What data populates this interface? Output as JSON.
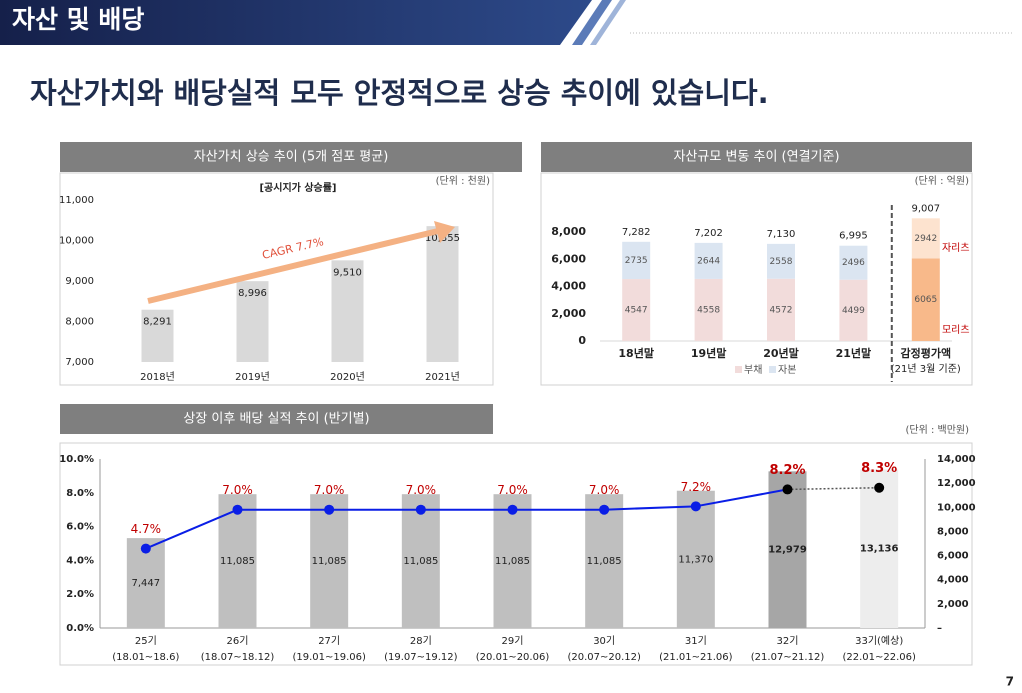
{
  "header": {
    "title": "자산 및 배당"
  },
  "headline": "자산가치와 배당실적 모두 안정적으로 상승 추이에 있습니다.",
  "page_number": "7",
  "chart_data": [
    {
      "type": "bar",
      "title": "자산가치 상승 추이 (5개 점포 평균)",
      "unit": "(단위 : 천원)",
      "subtitle": "[공시지가 상승률]",
      "annotation": "CAGR 7.7%",
      "categories": [
        "2018년",
        "2019년",
        "2020년",
        "2021년"
      ],
      "values": [
        8291,
        8996,
        9510,
        10355
      ],
      "value_labels": [
        "8,291",
        "8,996",
        "9,510",
        "10,355"
      ],
      "color": "#d9d9d9",
      "arrow_color": "#f4b183",
      "annotation_color": "#e0503a",
      "ylim": [
        7000,
        11000
      ],
      "yticks": [
        {
          "value": 7000,
          "label": "7,000"
        },
        {
          "value": 8000,
          "label": "8,000"
        },
        {
          "value": 9000,
          "label": "9,000"
        },
        {
          "value": 10000,
          "label": "10,000"
        },
        {
          "value": 11000,
          "label": "11,000"
        }
      ]
    },
    {
      "type": "stacked_bar",
      "title": "자산규모 변동 추이 (연결기준)",
      "unit": "(단위 : 억원)",
      "categories": [
        "18년말",
        "19년말",
        "20년말",
        "21년말",
        "감정평가액"
      ],
      "note": "(21년 3월 기준)",
      "series": [
        {
          "name": "부채",
          "color": "#f2dcdb",
          "bar_colors": [
            "#f2dcdb",
            "#f2dcdb",
            "#f2dcdb",
            "#f2dcdb",
            "#f8b98a"
          ],
          "values": [
            4547,
            4558,
            4572,
            4499,
            6065
          ]
        },
        {
          "name": "자본",
          "color": "#dbe5f1",
          "bar_colors": [
            "#dbe5f1",
            "#dbe5f1",
            "#dbe5f1",
            "#dbe5f1",
            "#fde3cf"
          ],
          "values": [
            2735,
            2644,
            2558,
            2496,
            2942
          ]
        }
      ],
      "totals": [
        7282,
        7202,
        7130,
        6995,
        9007
      ],
      "total_labels": [
        "7,282",
        "7,202",
        "7,130",
        "6,995",
        "9,007"
      ],
      "annotations": [
        "자리츠",
        "모리츠"
      ],
      "annotation_color": "#c00000",
      "ylim": [
        0,
        9000
      ],
      "yticks": [
        0,
        {
          "value": 2000,
          "label": "2,000"
        },
        {
          "value": 4000,
          "label": "4,000"
        },
        {
          "value": 6000,
          "label": "6,000"
        },
        {
          "value": 8000,
          "label": "8,000"
        }
      ]
    },
    {
      "type": "bar_line",
      "title": "상장 이후 배당 실적 추이 (반기별)",
      "unit": "(단위 : 백만원)",
      "categories": [
        "25기",
        "26기",
        "27기",
        "28기",
        "29기",
        "30기",
        "31기",
        "32기",
        "33기(예상)"
      ],
      "periods": [
        "(18.01~18.6)",
        "(18.07~18.12)",
        "(19.01~19.06)",
        "(19.07~19.12)",
        "(20.01~20.06)",
        "(20.07~20.12)",
        "(21.01~21.06)",
        "(21.07~21.12)",
        "(22.01~22.06)"
      ],
      "emphasis": [
        false,
        false,
        false,
        false,
        false,
        false,
        false,
        true,
        true
      ],
      "series": [
        {
          "type": "bar",
          "axis": "y2",
          "values": [
            7447,
            11085,
            11085,
            11085,
            11085,
            11085,
            11370,
            12979,
            13136
          ],
          "value_labels": [
            "7,447",
            "11,085",
            "11,085",
            "11,085",
            "11,085",
            "11,085",
            "11,370",
            "12,979",
            "13,136"
          ],
          "colors": [
            "#bfbfbf",
            "#bfbfbf",
            "#bfbfbf",
            "#bfbfbf",
            "#bfbfbf",
            "#bfbfbf",
            "#bfbfbf",
            "#a6a6a6",
            "#ededed"
          ]
        },
        {
          "type": "line",
          "values": [
            4.7,
            7.0,
            7.0,
            7.0,
            7.0,
            7.0,
            7.2,
            8.2,
            8.3
          ],
          "value_labels": [
            "4.7%",
            "7.0%",
            "7.0%",
            "7.0%",
            "7.0%",
            "7.0%",
            "7.2%",
            "8.2%",
            "8.3%"
          ],
          "color": "#0a1ee6",
          "point_colors": [
            "#0a1ee6",
            "#0a1ee6",
            "#0a1ee6",
            "#0a1ee6",
            "#0a1ee6",
            "#0a1ee6",
            "#0a1ee6",
            "#000000",
            "#000000"
          ],
          "label_color": "#c00000",
          "dotted_last_segment": true
        }
      ],
      "ylim": [
        0,
        10
      ],
      "yticks": [
        {
          "value": 0,
          "label": "0.0%"
        },
        {
          "value": 2,
          "label": "2.0%"
        },
        {
          "value": 4,
          "label": "4.0%"
        },
        {
          "value": 6,
          "label": "6.0%"
        },
        {
          "value": 8,
          "label": "8.0%"
        },
        {
          "value": 10,
          "label": "10.0%"
        }
      ],
      "y2lim": [
        0,
        14000
      ],
      "y2ticks": [
        {
          "value": 0,
          "label": "–"
        },
        {
          "value": 2000,
          "label": "2,000"
        },
        {
          "value": 4000,
          "label": "4,000"
        },
        {
          "value": 6000,
          "label": "6,000"
        },
        {
          "value": 8000,
          "label": "8,000"
        },
        {
          "value": 10000,
          "label": "10,000"
        },
        {
          "value": 12000,
          "label": "12,000"
        },
        {
          "value": 14000,
          "label": "14,000"
        }
      ]
    }
  ]
}
